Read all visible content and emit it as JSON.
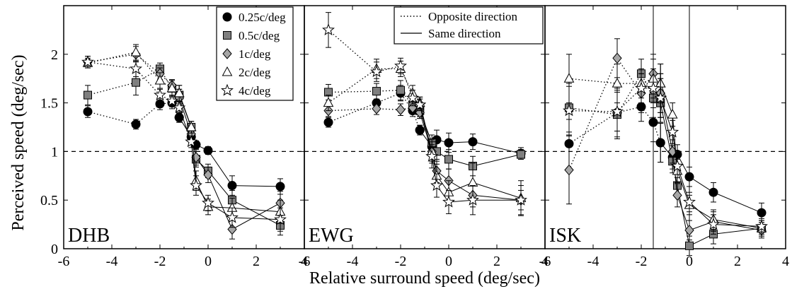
{
  "figure": {
    "ylabel": "Perceived speed (deg/sec)",
    "xlabel": "Relative surround speed (deg/sec)"
  },
  "colors": {
    "c025": "#000000",
    "c05": "#7f7f7f",
    "c1": "#a6a6a6",
    "c2": "#ffffff",
    "c4": "#ffffff"
  },
  "legend_conditions": {
    "entries": [
      {
        "key": "c025",
        "label": "0.25c/deg",
        "marker": "circle",
        "color": "#000000"
      },
      {
        "key": "c05",
        "label": "0.5c/deg",
        "marker": "square",
        "color": "#7f7f7f"
      },
      {
        "key": "c1",
        "label": "1c/deg",
        "marker": "diamond",
        "color": "#a6a6a6"
      },
      {
        "key": "c2",
        "label": "2c/deg",
        "marker": "triangle",
        "color": "#ffffff"
      },
      {
        "key": "c4",
        "label": "4c/deg",
        "marker": "star",
        "color": "#ffffff"
      }
    ]
  },
  "legend_direction": {
    "entries": [
      {
        "label": "Opposite direction",
        "style": "dotted"
      },
      {
        "label": "Same direction",
        "style": "solid"
      }
    ]
  },
  "chart_data": [
    {
      "type": "scatter",
      "panel_label": "DHB",
      "xlim": [
        -6,
        4
      ],
      "ylim": [
        0,
        2.5
      ],
      "x_ticks": [
        "-6",
        "-4",
        "-2",
        "0",
        "2",
        "4"
      ],
      "y_ticks": [
        "0",
        "0.5",
        "1",
        "1.5",
        "2"
      ],
      "reference_line": 1,
      "legend": "top-right",
      "series": [
        {
          "name": "0.25c/deg",
          "opposite": {
            "x": [
              -5,
              -3,
              -2,
              -1.5,
              -1.2
            ],
            "y": [
              1.41,
              1.28,
              1.49,
              1.5,
              1.35
            ],
            "err": [
              0.06,
              0.05,
              0.06,
              0.06,
              0.05
            ]
          },
          "same": {
            "x": [
              -1.2,
              -0.7,
              -0.5,
              0,
              1,
              3
            ],
            "y": [
              1.35,
              1.15,
              1.07,
              1.01,
              0.65,
              0.64
            ],
            "err": [
              0.05,
              0.05,
              0.04,
              0.04,
              0.1,
              0.08
            ]
          }
        },
        {
          "name": "0.5c/deg",
          "opposite": {
            "x": [
              -5,
              -3,
              -2,
              -1.5,
              -1.2
            ],
            "y": [
              1.58,
              1.71,
              1.85,
              1.65,
              1.58
            ],
            "err": [
              0.1,
              0.13,
              0.06,
              0.08,
              0.06
            ]
          },
          "same": {
            "x": [
              -1.2,
              -0.7,
              -0.5,
              0,
              1,
              3
            ],
            "y": [
              1.58,
              1.25,
              0.92,
              0.8,
              0.5,
              0.24
            ],
            "err": [
              0.06,
              0.06,
              0.08,
              0.07,
              0.1,
              0.1
            ]
          }
        },
        {
          "name": "1c/deg",
          "opposite": {
            "x": [
              -5,
              -3,
              -2,
              -1.5,
              -1.2
            ],
            "y": [
              1.92,
              2.0,
              1.8,
              1.68,
              1.55
            ],
            "err": [
              0.06,
              0.08,
              0.06,
              0.06,
              0.06
            ]
          },
          "same": {
            "x": [
              -1.2,
              -0.7,
              -0.5,
              0,
              1,
              3
            ],
            "y": [
              1.55,
              1.18,
              0.94,
              0.76,
              0.2,
              0.47
            ],
            "err": [
              0.06,
              0.06,
              0.08,
              0.08,
              0.1,
              0.12
            ]
          }
        },
        {
          "name": "2c/deg",
          "opposite": {
            "x": [
              -5,
              -3,
              -2,
              -1.5,
              -1.2
            ],
            "y": [
              1.91,
              2.02,
              1.73,
              1.65,
              1.6
            ],
            "err": [
              0.05,
              0.08,
              0.08,
              0.08,
              0.08
            ]
          },
          "same": {
            "x": [
              -1.2,
              -0.7,
              -0.5,
              0,
              1,
              3
            ],
            "y": [
              1.6,
              1.25,
              0.7,
              0.43,
              0.42,
              0.38
            ],
            "err": [
              0.08,
              0.06,
              0.1,
              0.08,
              0.1,
              0.12
            ]
          }
        },
        {
          "name": "4c/deg",
          "opposite": {
            "x": [
              -5,
              -3,
              -2,
              -1.5,
              -1.2
            ],
            "y": [
              1.92,
              1.85,
              1.58,
              1.52,
              1.45
            ],
            "err": [
              0.06,
              0.08,
              0.06,
              0.06,
              0.06
            ]
          },
          "same": {
            "x": [
              -1.2,
              -0.7,
              -0.5,
              0,
              1,
              3
            ],
            "y": [
              1.45,
              1.1,
              0.65,
              0.47,
              0.32,
              0.3
            ],
            "err": [
              0.06,
              0.06,
              0.1,
              0.08,
              0.1,
              0.12
            ]
          }
        }
      ]
    },
    {
      "type": "scatter",
      "panel_label": "EWG",
      "xlim": [
        -6,
        4
      ],
      "ylim": [
        0,
        2.5
      ],
      "x_ticks": [
        "-6",
        "-4",
        "-2",
        "0",
        "2",
        "4"
      ],
      "y_ticks": [],
      "reference_line": 1,
      "legend": "top-right",
      "series": [
        {
          "name": "0.25c/deg",
          "opposite": {
            "x": [
              -5,
              -3,
              -2,
              -1.5,
              -1.2
            ],
            "y": [
              1.3,
              1.5,
              1.6,
              1.42,
              1.22
            ],
            "err": [
              0.05,
              0.08,
              0.08,
              0.06,
              0.05
            ]
          },
          "same": {
            "x": [
              -1.2,
              -0.7,
              -0.5,
              0,
              1,
              3
            ],
            "y": [
              1.22,
              1.05,
              1.12,
              1.09,
              1.1,
              0.98
            ],
            "err": [
              0.05,
              0.08,
              0.1,
              0.1,
              0.08,
              0.06
            ]
          }
        },
        {
          "name": "0.5c/deg",
          "opposite": {
            "x": [
              -5,
              -3,
              -2,
              -1.5,
              -1.2
            ],
            "y": [
              1.61,
              1.62,
              1.63,
              1.48,
              1.42
            ],
            "err": [
              0.08,
              0.08,
              0.1,
              0.06,
              0.06
            ]
          },
          "same": {
            "x": [
              -1.2,
              -0.7,
              -0.5,
              0,
              1,
              3
            ],
            "y": [
              1.42,
              1.09,
              1.0,
              0.92,
              0.85,
              0.97
            ],
            "err": [
              0.06,
              0.08,
              0.1,
              0.1,
              0.1,
              0.05
            ]
          }
        },
        {
          "name": "1c/deg",
          "opposite": {
            "x": [
              -5,
              -3,
              -2,
              -1.5,
              -1.2
            ],
            "y": [
              1.42,
              1.44,
              1.43,
              1.45,
              1.4
            ],
            "err": [
              0.06,
              0.06,
              0.06,
              0.06,
              0.06
            ]
          },
          "same": {
            "x": [
              -1.2,
              -0.7,
              -0.5,
              0,
              1,
              3
            ],
            "y": [
              1.4,
              1.0,
              0.8,
              0.7,
              0.55,
              0.5
            ],
            "err": [
              0.06,
              0.1,
              0.12,
              0.12,
              0.12,
              0.1
            ]
          }
        },
        {
          "name": "2c/deg",
          "opposite": {
            "x": [
              -5,
              -3,
              -2,
              -1.5,
              -1.2
            ],
            "y": [
              1.5,
              1.85,
              1.85,
              1.6,
              1.5
            ],
            "err": [
              0.08,
              0.1,
              0.08,
              0.08,
              0.06
            ]
          },
          "same": {
            "x": [
              -1.2,
              -0.7,
              -0.5,
              0,
              1,
              3
            ],
            "y": [
              1.5,
              1.0,
              0.75,
              0.58,
              0.68,
              0.52
            ],
            "err": [
              0.06,
              0.12,
              0.12,
              0.12,
              0.2,
              0.18
            ]
          }
        },
        {
          "name": "4c/deg",
          "opposite": {
            "x": [
              -5,
              -3,
              -2,
              -1.5,
              -1.2
            ],
            "y": [
              2.25,
              1.82,
              1.88,
              1.55,
              1.48
            ],
            "err": [
              0.18,
              0.1,
              0.08,
              0.08,
              0.06
            ]
          },
          "same": {
            "x": [
              -1.2,
              -0.7,
              -0.5,
              0,
              1,
              3
            ],
            "y": [
              1.48,
              0.95,
              0.65,
              0.48,
              0.5,
              0.5
            ],
            "err": [
              0.06,
              0.12,
              0.12,
              0.12,
              0.15,
              0.15
            ]
          }
        }
      ]
    },
    {
      "type": "scatter",
      "panel_label": "ISK",
      "xlim": [
        -6,
        4
      ],
      "ylim": [
        0,
        2.5
      ],
      "x_ticks": [
        "-6",
        "-4",
        "-2",
        "0",
        "2",
        "4"
      ],
      "y_ticks": [],
      "reference_line": 1,
      "legend": "none",
      "series": [
        {
          "name": "0.25c/deg",
          "opposite": {
            "x": [
              -5,
              -3,
              -2,
              -1.5,
              -1.2
            ],
            "y": [
              1.08,
              1.4,
              1.46,
              1.3,
              1.09
            ],
            "err": [
              0.25,
              0.25,
              0.15,
              0.2,
              0.2
            ]
          },
          "same": {
            "x": [
              -1.2,
              -0.7,
              -0.5,
              0,
              1,
              3
            ],
            "y": [
              1.09,
              0.94,
              0.97,
              0.74,
              0.58,
              0.37
            ],
            "err": [
              0.2,
              0.12,
              0.1,
              0.1,
              0.1,
              0.1
            ]
          }
        },
        {
          "name": "0.5c/deg",
          "opposite": {
            "x": [
              -5,
              -3,
              -2,
              -1.5,
              -1.2
            ],
            "y": [
              1.45,
              1.38,
              1.8,
              1.55,
              1.5
            ],
            "err": [
              0.25,
              0.25,
              0.15,
              0.2,
              0.2
            ]
          },
          "same": {
            "x": [
              -1.2,
              -0.7,
              -0.5,
              0,
              1,
              3
            ],
            "y": [
              1.5,
              0.9,
              0.65,
              0.03,
              0.15,
              0.21
            ],
            "err": [
              0.2,
              0.12,
              0.12,
              0.1,
              0.1,
              0.08
            ]
          }
        },
        {
          "name": "1c/deg",
          "opposite": {
            "x": [
              -5,
              -3,
              -2,
              -1.5,
              -1.2
            ],
            "y": [
              0.81,
              1.96,
              1.6,
              1.8,
              1.6
            ],
            "err": [
              0.35,
              0.2,
              0.2,
              0.2,
              0.2
            ]
          },
          "same": {
            "x": [
              -1.2,
              -0.7,
              -0.5,
              0,
              1,
              3
            ],
            "y": [
              1.6,
              1.0,
              0.55,
              0.19,
              0.28,
              0.19
            ],
            "err": [
              0.2,
              0.12,
              0.12,
              0.1,
              0.1,
              0.08
            ]
          }
        },
        {
          "name": "2c/deg",
          "opposite": {
            "x": [
              -5,
              -3,
              -2,
              -1.5,
              -1.2
            ],
            "y": [
              1.75,
              1.7,
              1.7,
              1.75,
              1.7
            ],
            "err": [
              0.25,
              0.2,
              0.15,
              0.2,
              0.2
            ]
          },
          "same": {
            "x": [
              -1.2,
              -0.7,
              -0.5,
              0,
              1,
              3
            ],
            "y": [
              1.7,
              1.38,
              0.8,
              0.45,
              0.3,
              0.21
            ],
            "err": [
              0.2,
              0.12,
              0.12,
              0.1,
              0.1,
              0.08
            ]
          }
        },
        {
          "name": "4c/deg",
          "opposite": {
            "x": [
              -5,
              -3,
              -2,
              -1.5,
              -1.2
            ],
            "y": [
              1.42,
              1.41,
              1.65,
              1.65,
              1.55
            ],
            "err": [
              0.25,
              0.2,
              0.15,
              0.2,
              0.2
            ]
          },
          "same": {
            "x": [
              -1.2,
              -0.7,
              -0.5,
              0,
              1,
              3
            ],
            "y": [
              1.55,
              1.2,
              0.85,
              0.48,
              0.25,
              0.23
            ],
            "err": [
              0.2,
              0.12,
              0.12,
              0.1,
              0.1,
              0.08
            ]
          }
        }
      ]
    }
  ]
}
